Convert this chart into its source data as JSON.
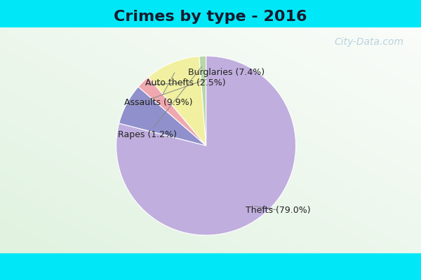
{
  "title": "Crimes by type - 2016",
  "labels": [
    "Thefts",
    "Burglaries",
    "Auto thefts",
    "Assaults",
    "Rapes"
  ],
  "values": [
    79.0,
    7.4,
    2.5,
    9.9,
    1.2
  ],
  "colors": [
    "#c0aede",
    "#9090cc",
    "#f0a8b0",
    "#f0f0a0",
    "#b8d8a8"
  ],
  "label_texts": [
    "Thefts (79.0%)",
    "Burglaries (7.4%)",
    "Auto thefts (2.5%)",
    "Assaults (9.9%)",
    "Rapes (1.2%)"
  ],
  "cyan_bar_color": "#00e8f8",
  "cyan_bar_height": 0.095,
  "background_color": "#e8f4e8",
  "title_fontsize": 16,
  "label_fontsize": 9,
  "watermark_text": "City-Data.com",
  "watermark_color": "#aac8d8"
}
